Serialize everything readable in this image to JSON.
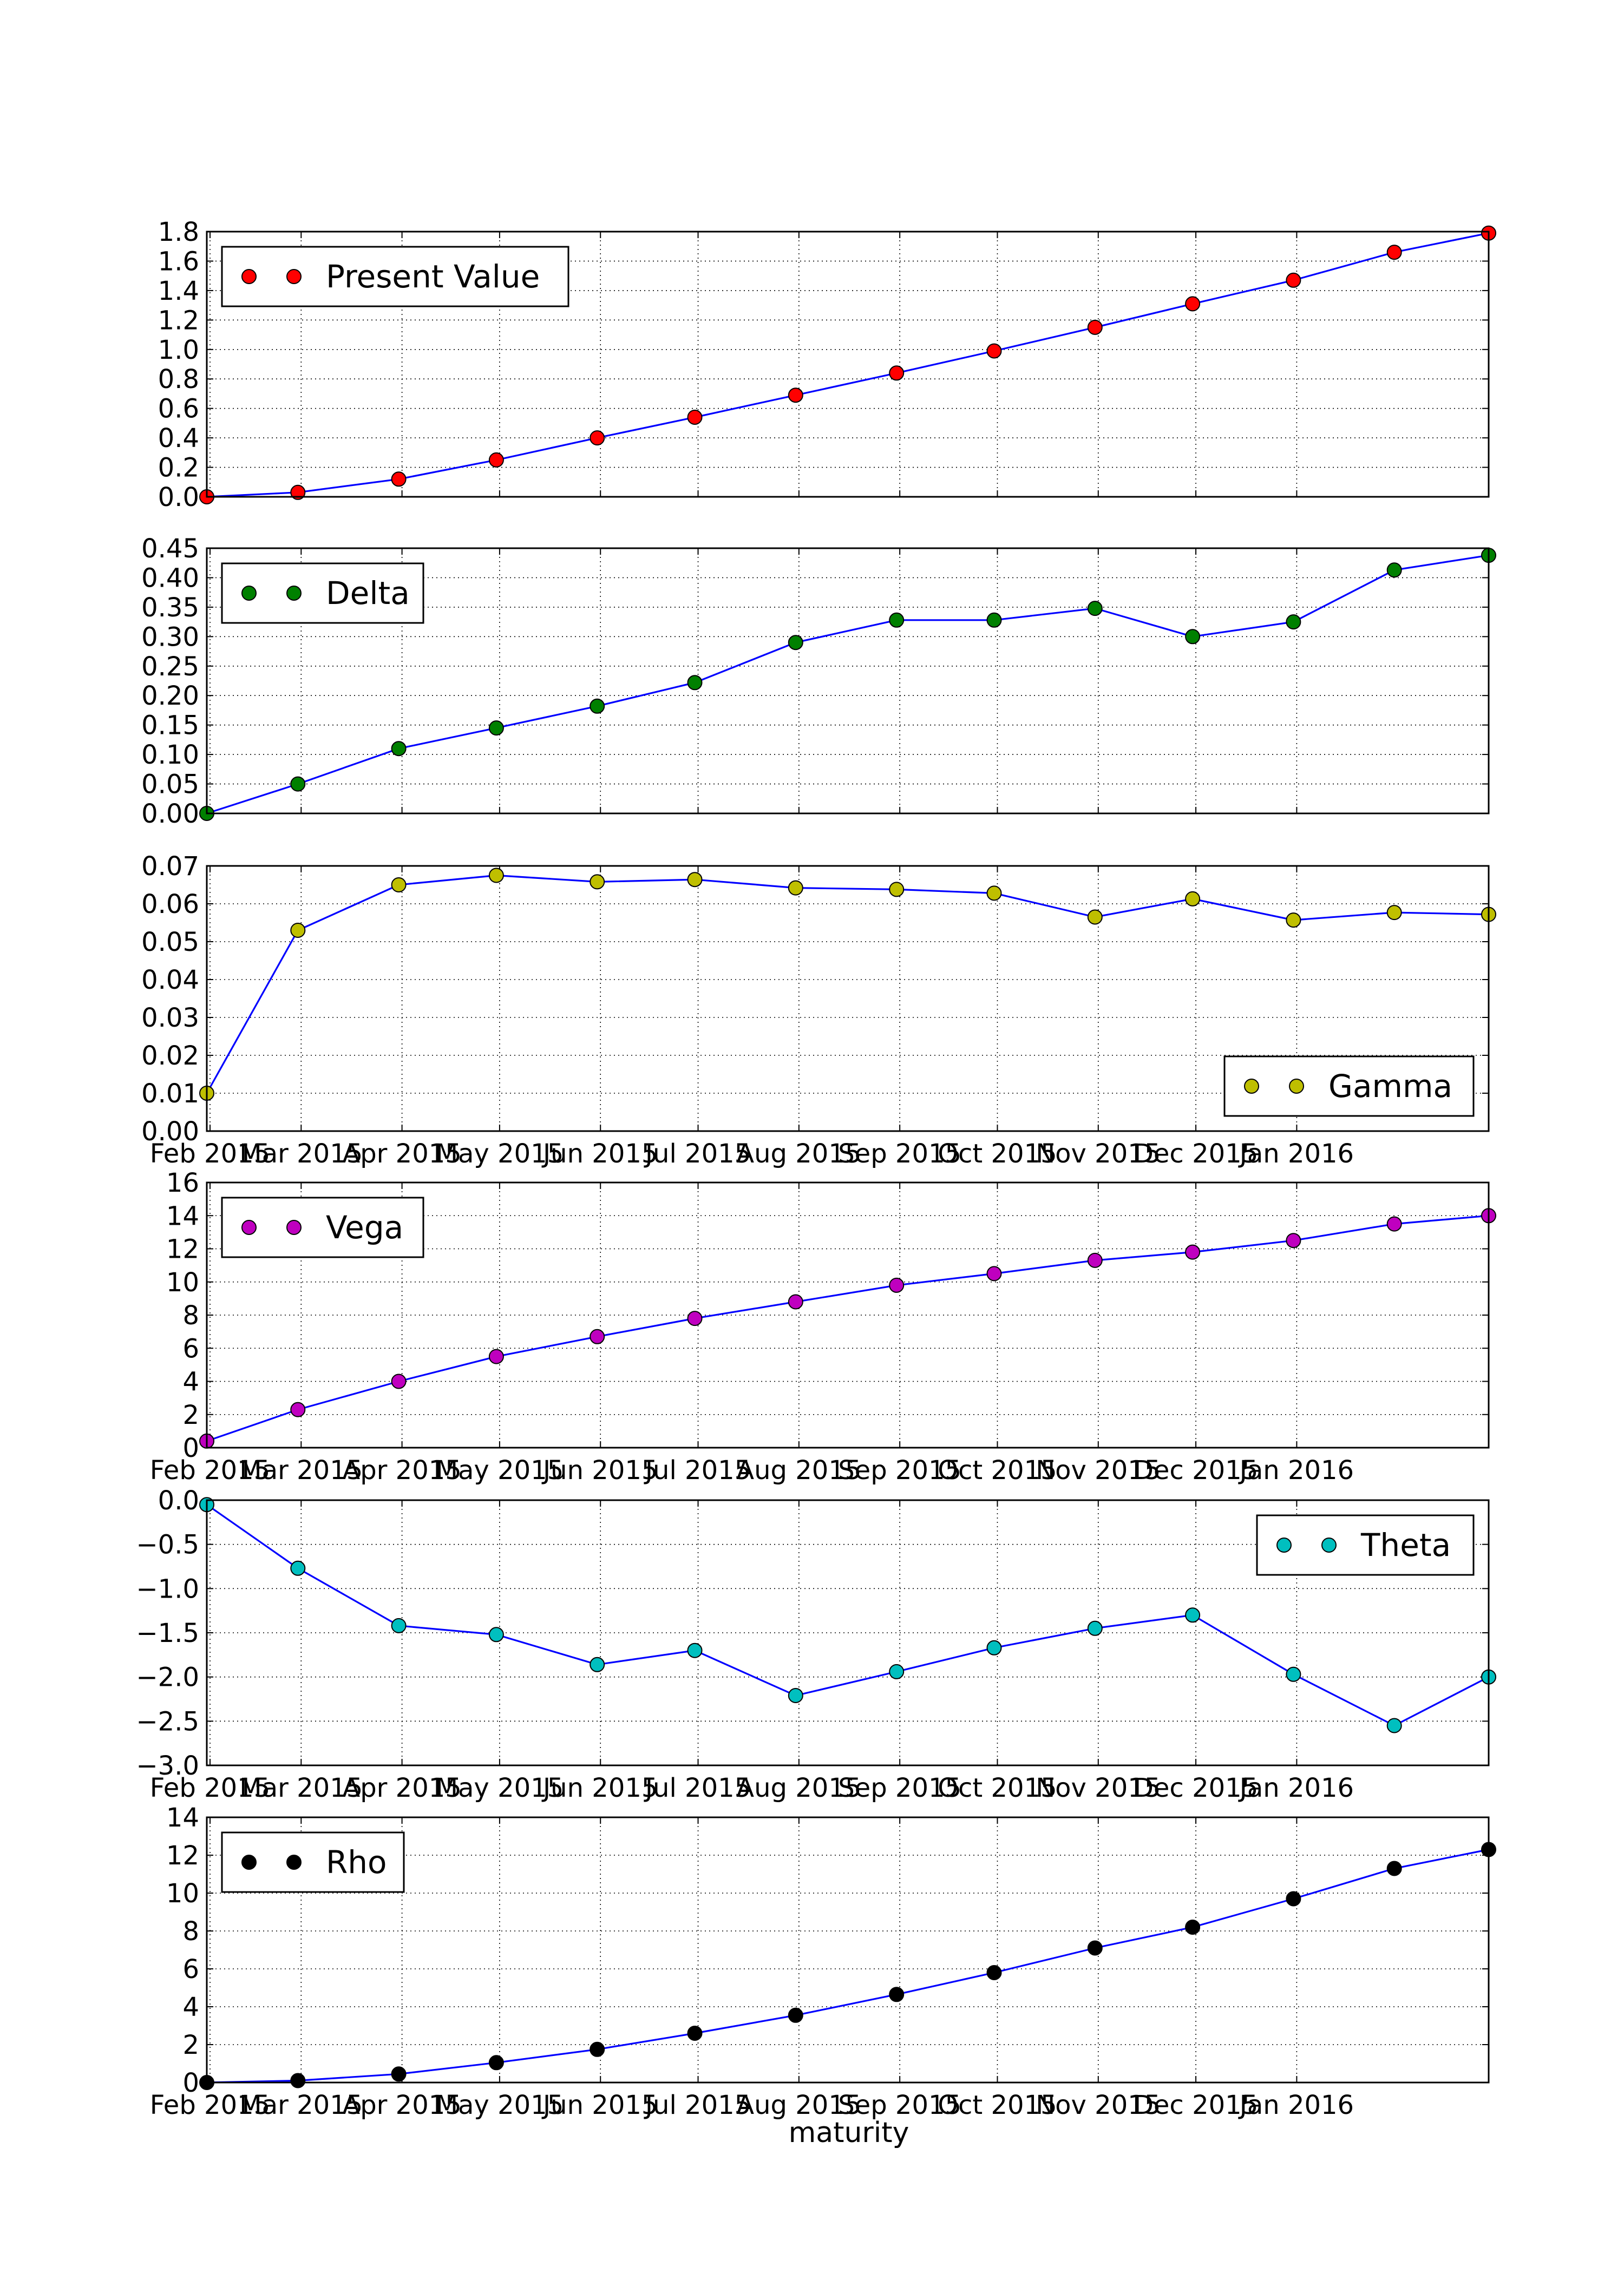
{
  "chart_data": [
    {
      "type": "line",
      "title": "",
      "xlabel": "",
      "ylabel": "",
      "x": [
        "2015-01-31",
        "2015-02-28",
        "2015-03-31",
        "2015-04-30",
        "2015-05-31",
        "2015-06-30",
        "2015-07-31",
        "2015-08-31",
        "2015-09-30",
        "2015-10-31",
        "2015-11-30",
        "2015-12-31",
        "2016-01-31",
        "2016-02-29"
      ],
      "ylim": [
        0.0,
        1.8
      ],
      "yticks": [
        "0.0",
        "0.2",
        "0.4",
        "0.6",
        "0.8",
        "1.0",
        "1.2",
        "1.4",
        "1.6",
        "1.8"
      ],
      "show_xticklabels": false,
      "grid": true,
      "legend_position": "upper-left",
      "marker_color": "#ff0000",
      "series": [
        {
          "name": "Present Value",
          "values": [
            0.0,
            0.03,
            0.12,
            0.25,
            0.4,
            0.54,
            0.69,
            0.84,
            0.99,
            1.15,
            1.31,
            1.47,
            1.66,
            1.79
          ]
        }
      ]
    },
    {
      "type": "line",
      "title": "",
      "xlabel": "",
      "ylabel": "",
      "x": [
        "2015-01-31",
        "2015-02-28",
        "2015-03-31",
        "2015-04-30",
        "2015-05-31",
        "2015-06-30",
        "2015-07-31",
        "2015-08-31",
        "2015-09-30",
        "2015-10-31",
        "2015-11-30",
        "2015-12-31",
        "2016-01-31",
        "2016-02-29"
      ],
      "ylim": [
        0.0,
        0.45
      ],
      "yticks": [
        "0.00",
        "0.05",
        "0.10",
        "0.15",
        "0.20",
        "0.25",
        "0.30",
        "0.35",
        "0.40",
        "0.45"
      ],
      "show_xticklabels": false,
      "grid": true,
      "legend_position": "upper-left",
      "marker_color": "#008000",
      "series": [
        {
          "name": "Delta",
          "values": [
            0.0,
            0.05,
            0.11,
            0.145,
            0.182,
            0.222,
            0.29,
            0.328,
            0.328,
            0.348,
            0.3,
            0.325,
            0.413,
            0.438
          ]
        }
      ]
    },
    {
      "type": "line",
      "title": "",
      "xlabel": "",
      "ylabel": "",
      "x": [
        "2015-01-31",
        "2015-02-28",
        "2015-03-31",
        "2015-04-30",
        "2015-05-31",
        "2015-06-30",
        "2015-07-31",
        "2015-08-31",
        "2015-09-30",
        "2015-10-31",
        "2015-11-30",
        "2015-12-31",
        "2016-01-31",
        "2016-02-29"
      ],
      "ylim": [
        0.0,
        0.07
      ],
      "yticks": [
        "0.00",
        "0.01",
        "0.02",
        "0.03",
        "0.04",
        "0.05",
        "0.06",
        "0.07"
      ],
      "show_xticklabels": true,
      "grid": true,
      "legend_position": "lower-right",
      "marker_color": "#bfbf00",
      "series": [
        {
          "name": "Gamma",
          "values": [
            0.01,
            0.053,
            0.065,
            0.0675,
            0.0658,
            0.0664,
            0.0642,
            0.0638,
            0.0628,
            0.0565,
            0.0613,
            0.0557,
            0.0577,
            0.0572
          ]
        }
      ]
    },
    {
      "type": "line",
      "title": "",
      "xlabel": "",
      "ylabel": "",
      "x": [
        "2015-01-31",
        "2015-02-28",
        "2015-03-31",
        "2015-04-30",
        "2015-05-31",
        "2015-06-30",
        "2015-07-31",
        "2015-08-31",
        "2015-09-30",
        "2015-10-31",
        "2015-11-30",
        "2015-12-31",
        "2016-01-31",
        "2016-02-29"
      ],
      "ylim": [
        0,
        16
      ],
      "yticks": [
        "0",
        "2",
        "4",
        "6",
        "8",
        "10",
        "12",
        "14",
        "16"
      ],
      "show_xticklabels": true,
      "grid": true,
      "legend_position": "upper-left",
      "marker_color": "#bf00bf",
      "series": [
        {
          "name": "Vega",
          "values": [
            0.4,
            2.3,
            4.0,
            5.5,
            6.7,
            7.8,
            8.8,
            9.8,
            10.5,
            11.3,
            11.8,
            12.5,
            13.5,
            14.0
          ]
        }
      ]
    },
    {
      "type": "line",
      "title": "",
      "xlabel": "",
      "ylabel": "",
      "x": [
        "2015-01-31",
        "2015-02-28",
        "2015-03-31",
        "2015-04-30",
        "2015-05-31",
        "2015-06-30",
        "2015-07-31",
        "2015-08-31",
        "2015-09-30",
        "2015-10-31",
        "2015-11-30",
        "2015-12-31",
        "2016-01-31",
        "2016-02-29"
      ],
      "ylim": [
        -3.0,
        0.0
      ],
      "yticks": [
        "−3.0",
        "−2.5",
        "−2.0",
        "−1.5",
        "−1.0",
        "−0.5",
        "0.0"
      ],
      "show_xticklabels": true,
      "grid": true,
      "legend_position": "upper-right",
      "marker_color": "#00bfbf",
      "series": [
        {
          "name": "Theta",
          "values": [
            -0.05,
            -0.77,
            -1.42,
            -1.52,
            -1.86,
            -1.7,
            -2.21,
            -1.94,
            -1.67,
            -1.45,
            -1.3,
            -1.97,
            -2.55,
            -2.0
          ]
        }
      ]
    },
    {
      "type": "line",
      "title": "",
      "xlabel": "maturity",
      "ylabel": "",
      "x": [
        "2015-01-31",
        "2015-02-28",
        "2015-03-31",
        "2015-04-30",
        "2015-05-31",
        "2015-06-30",
        "2015-07-31",
        "2015-08-31",
        "2015-09-30",
        "2015-10-31",
        "2015-11-30",
        "2015-12-31",
        "2016-01-31",
        "2016-02-29"
      ],
      "ylim": [
        0,
        14
      ],
      "yticks": [
        "0",
        "2",
        "4",
        "6",
        "8",
        "10",
        "12",
        "14"
      ],
      "show_xticklabels": true,
      "grid": true,
      "legend_position": "upper-left",
      "marker_color": "#000000",
      "series": [
        {
          "name": "Rho",
          "values": [
            0.0,
            0.1,
            0.45,
            1.05,
            1.75,
            2.6,
            3.55,
            4.65,
            5.8,
            7.1,
            8.2,
            9.7,
            11.3,
            12.3
          ]
        }
      ]
    }
  ],
  "x_axis": {
    "tick_dates": [
      "2015-02-01",
      "2015-03-01",
      "2015-04-01",
      "2015-05-01",
      "2015-06-01",
      "2015-07-01",
      "2015-08-01",
      "2015-09-01",
      "2015-10-01",
      "2015-11-01",
      "2015-12-01",
      "2016-01-01"
    ],
    "tick_labels": [
      "Feb 2015",
      "Mar 2015",
      "Apr 2015",
      "May 2015",
      "Jun 2015",
      "Jul 2015",
      "Aug 2015",
      "Sep 2015",
      "Oct 2015",
      "Nov 2015",
      "Dec 2015",
      "Jan 2016"
    ],
    "range": [
      "2015-01-31",
      "2016-02-29"
    ]
  },
  "style": {
    "line_color": "#0000ff",
    "marker_edge_color": "#000000",
    "grid_color": "#000000",
    "axes_edge_color": "#000000"
  }
}
